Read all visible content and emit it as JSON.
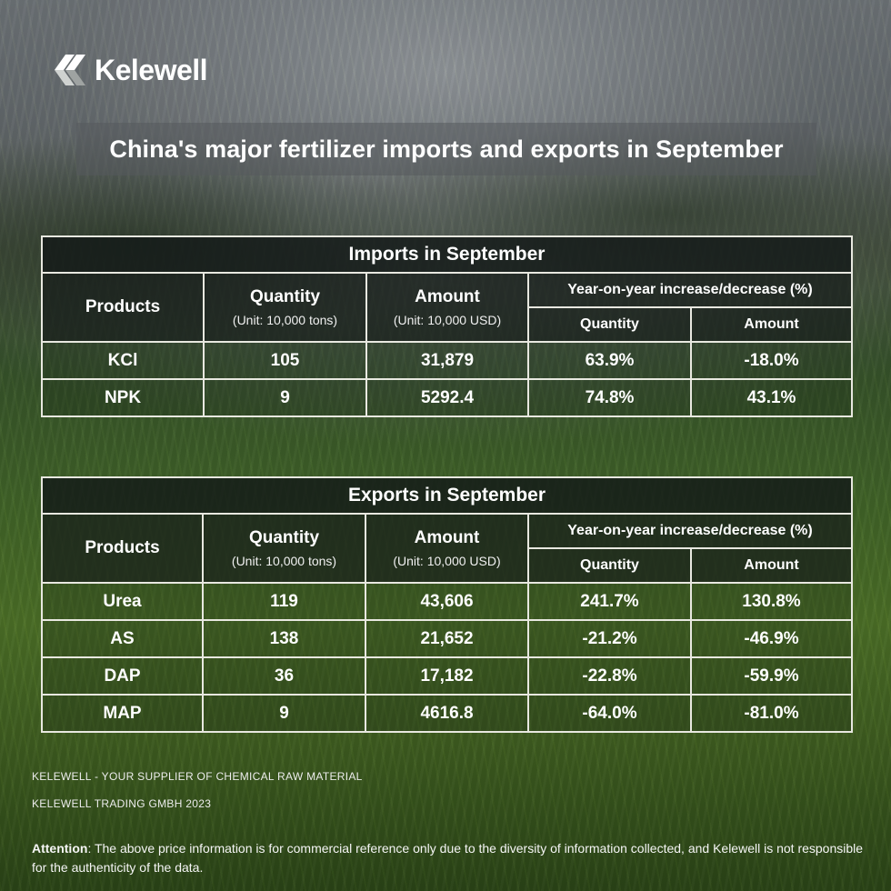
{
  "brand": {
    "name": "Kelewell",
    "logo_icon": "kelewell-chevron-logo-icon"
  },
  "title": "China's major fertilizer imports and exports in September",
  "imports": {
    "caption": "Imports in September",
    "headers": {
      "products": "Products",
      "quantity": "Quantity",
      "quantity_unit": "(Unit: 10,000 tons)",
      "amount": "Amount",
      "amount_unit": "(Unit: 10,000 USD)",
      "yoy": "Year-on-year increase/decrease (%)",
      "yoy_quantity": "Quantity",
      "yoy_amount": "Amount"
    },
    "rows": [
      {
        "product": "KCl",
        "quantity": "105",
        "amount": "31,879",
        "yoy_quantity": "63.9%",
        "yoy_amount": "-18.0%"
      },
      {
        "product": "NPK",
        "quantity": "9",
        "amount": "5292.4",
        "yoy_quantity": "74.8%",
        "yoy_amount": "43.1%"
      }
    ]
  },
  "exports": {
    "caption": "Exports  in September",
    "headers": {
      "products": "Products",
      "quantity": "Quantity",
      "quantity_unit": "(Unit: 10,000 tons)",
      "amount": "Amount",
      "amount_unit": "(Unit: 10,000 USD)",
      "yoy": "Year-on-year increase/decrease (%)",
      "yoy_quantity": "Quantity",
      "yoy_amount": "Amount"
    },
    "rows": [
      {
        "product": "Urea",
        "quantity": "119",
        "amount": "43,606",
        "yoy_quantity": "241.7%",
        "yoy_amount": "130.8%"
      },
      {
        "product": "AS",
        "quantity": "138",
        "amount": "21,652",
        "yoy_quantity": "-21.2%",
        "yoy_amount": "-46.9%"
      },
      {
        "product": "DAP",
        "quantity": "36",
        "amount": "17,182",
        "yoy_quantity": "-22.8%",
        "yoy_amount": "-59.9%"
      },
      {
        "product": "MAP",
        "quantity": "9",
        "amount": "4616.8",
        "yoy_quantity": "-64.0%",
        "yoy_amount": "-81.0%"
      }
    ]
  },
  "footer": {
    "tagline": "KELEWELL -  YOUR SUPPLIER OF CHEMICAL RAW MATERIAL",
    "company": "KELEWELL TRADING GMBH 2023",
    "attention_label": "Attention",
    "attention_text": ": The above price information is for commercial reference only due to the diversity of information collected, and Kelewell is not responsible for the authenticity of the data."
  },
  "colors": {
    "text": "#ffffff",
    "table_border": "#e8e8e0",
    "caption_bg": "#141a18",
    "title_bar_bg": "#555a5c"
  }
}
